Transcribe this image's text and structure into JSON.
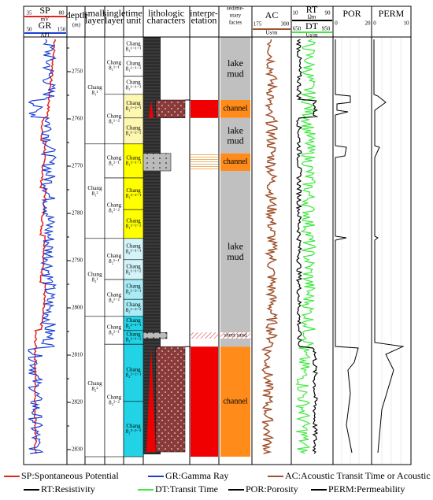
{
  "header": {
    "sp": {
      "label": "SP",
      "min": "35",
      "max": "80",
      "unit": "mV"
    },
    "gr": {
      "label": "GR",
      "min": "50",
      "max": "150",
      "unit": "API"
    },
    "depth": {
      "label": "depth",
      "unit": "(m)"
    },
    "small_layer": [
      "small",
      "layer"
    ],
    "single_layer": [
      "single",
      "layer"
    ],
    "time_unit": [
      "time",
      "unit"
    ],
    "lithology": [
      "lithologic",
      "characters"
    ],
    "interpretation": [
      "interpr-",
      "etation"
    ],
    "facies": [
      "sedime-",
      "ntary",
      "facies"
    ],
    "ac": {
      "label": "AC",
      "min": "175",
      "max": "300",
      "unit": "Us/m"
    },
    "rt": {
      "label": "RT",
      "min": "10",
      "max": "90",
      "unit": "Ωm"
    },
    "dt": {
      "label": "DT",
      "min": "650",
      "max": "950",
      "unit": "Us/m"
    },
    "por": {
      "label": "POR",
      "min": "0",
      "max": "20"
    },
    "perm": {
      "label": "PERM",
      "min": "0",
      "max": "10"
    }
  },
  "depth_ticks": [
    2750,
    2760,
    2770,
    2780,
    2790,
    2800,
    2810,
    2820,
    2830
  ],
  "small_layers": [
    {
      "lines": [
        "Chang",
        "8₁¹"
      ],
      "top": 2742.7,
      "bottom": 2765.3
    },
    {
      "lines": [
        "Chang",
        "8₁²"
      ],
      "top": 2765.3,
      "bottom": 2785.3
    },
    {
      "lines": [
        "Chang",
        "8₂¹"
      ],
      "top": 2785.3,
      "bottom": 2801.8
    },
    {
      "lines": [
        "Chang",
        "8₂²"
      ],
      "top": 2801.8,
      "bottom": 2831.5
    }
  ],
  "single_layers": [
    {
      "lines": [
        "Chang",
        "8₁¹⁻¹"
      ],
      "top": 2742.7,
      "bottom": 2754.8
    },
    {
      "lines": [
        "Chang",
        "8₁¹⁻²"
      ],
      "top": 2754.8,
      "bottom": 2765.3
    },
    {
      "lines": [
        "Chang",
        "8₁²⁻¹"
      ],
      "top": 2765.3,
      "bottom": 2772.5
    },
    {
      "lines": [
        "Chang",
        "8₁²⁻²"
      ],
      "top": 2772.5,
      "bottom": 2785.3
    },
    {
      "lines": [
        "Chang",
        "8₂¹⁻¹"
      ],
      "top": 2785.3,
      "bottom": 2794
    },
    {
      "lines": [
        "Chang",
        "8₂¹⁻²"
      ],
      "top": 2794,
      "bottom": 2801.8
    },
    {
      "lines": [
        "Chang",
        "8₂²⁻¹"
      ],
      "top": 2801.8,
      "bottom": 2807.7
    },
    {
      "lines": [
        "Chang",
        "8₂²⁻²"
      ],
      "top": 2807.7,
      "bottom": 2831.5
    }
  ],
  "time_units": [
    {
      "lines": [
        "Chang",
        "8₁¹⁻¹⁻¹"
      ],
      "top": 2742.7,
      "bottom": 2746.8,
      "color": "#ffffff"
    },
    {
      "lines": [
        "Chang",
        "8₁¹⁻¹⁻²"
      ],
      "top": 2746.8,
      "bottom": 2751,
      "color": "#ffffff"
    },
    {
      "lines": [
        "Chang",
        "8₁¹⁻¹⁻³"
      ],
      "top": 2751,
      "bottom": 2754.8,
      "color": "#ffffff"
    },
    {
      "lines": [
        "Chang",
        "8₁¹⁻²⁻¹"
      ],
      "top": 2754.8,
      "bottom": 2759.8,
      "color": "#fdf7b0"
    },
    {
      "lines": [
        "Chang",
        "8₁¹⁻²⁻²"
      ],
      "top": 2759.8,
      "bottom": 2765.3,
      "color": "#fdf7b0"
    },
    {
      "lines": [
        "Chang",
        "8₁²⁻¹⁻¹"
      ],
      "top": 2765.3,
      "bottom": 2772.5,
      "color": "#ffff00"
    },
    {
      "lines": [
        "Chang",
        "8₁²⁻²⁻¹"
      ],
      "top": 2772.5,
      "bottom": 2779.2,
      "color": "#ffff00"
    },
    {
      "lines": [
        "Chang",
        "8₁²⁻²⁻²"
      ],
      "top": 2779.2,
      "bottom": 2785.3,
      "color": "#ffff00"
    },
    {
      "lines": [
        "Chang",
        "8₂¹⁻¹⁻¹"
      ],
      "top": 2785.3,
      "bottom": 2789.8,
      "color": "#d4f4fa"
    },
    {
      "lines": [
        "Chang",
        "8₂¹⁻¹⁻²"
      ],
      "top": 2789.8,
      "bottom": 2794,
      "color": "#d4f4fa"
    },
    {
      "lines": [
        "Chang",
        "8₂¹⁻²⁻¹"
      ],
      "top": 2794,
      "bottom": 2798.2,
      "color": "#a8ecf6"
    },
    {
      "lines": [
        "Chang",
        "8₂¹⁻²⁻²"
      ],
      "top": 2798.2,
      "bottom": 2801.8,
      "color": "#a8ecf6"
    },
    {
      "lines": [
        "Chang",
        "8₂²⁻¹⁻¹"
      ],
      "top": 2801.8,
      "bottom": 2804.8,
      "color": "#22d3e6"
    },
    {
      "lines": [
        "Chang",
        "8₂²⁻¹⁻²"
      ],
      "top": 2804.8,
      "bottom": 2807.7,
      "color": "#22d3e6"
    },
    {
      "lines": [
        "Chang",
        "8₂²⁻²⁻¹"
      ],
      "top": 2807.7,
      "bottom": 2819.8,
      "color": "#22d3e6"
    },
    {
      "lines": [
        "Chang",
        "8₂²⁻²⁻²"
      ],
      "top": 2819.8,
      "bottom": 2831.5,
      "color": "#22d3e6"
    }
  ],
  "facies": [
    {
      "label": "lake mud",
      "top": 2742.7,
      "bottom": 2756,
      "color": "#c0c0c0"
    },
    {
      "label": "channel",
      "top": 2756,
      "bottom": 2759.8,
      "color": "#ff8c1a"
    },
    {
      "label": "lake mud",
      "top": 2759.8,
      "bottom": 2767.3,
      "color": "#c0c0c0"
    },
    {
      "label": "channel",
      "top": 2767.3,
      "bottom": 2771,
      "color": "#ff8c1a"
    },
    {
      "label": "lake mud",
      "top": 2771,
      "bottom": 2805.2,
      "color": "#c0c0c0"
    },
    {
      "label": "sheet sand",
      "top": 2805.2,
      "bottom": 2806.5,
      "color": "#ffff66"
    },
    {
      "label": "channel",
      "top": 2808.2,
      "bottom": 2831.5,
      "color": "#ff8c1a"
    }
  ],
  "legend": [
    {
      "text": "SP:Spontaneous Potential",
      "color": "#e8231e"
    },
    {
      "text": "GR:Gamma Ray",
      "color": "#1a3fd6"
    },
    {
      "text": "AC:Acoustic Transit Time or Acoustic Log",
      "color": "#a0522d"
    },
    {
      "text": "RT:Resistivity",
      "color": "#000000"
    },
    {
      "text": "DT:Transit Time",
      "color": "#3ee83e"
    },
    {
      "text": "POR:Porosity",
      "color": "#000000"
    },
    {
      "text": "PERM:Permeability",
      "color": "#000000"
    }
  ]
}
